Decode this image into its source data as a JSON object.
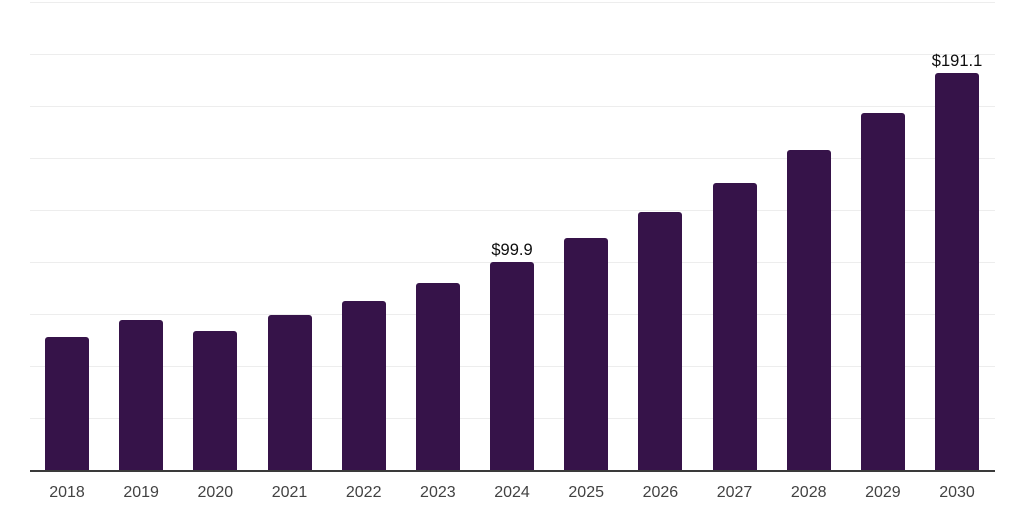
{
  "chart_data": {
    "type": "bar",
    "title": "",
    "xlabel": "",
    "ylabel": "",
    "categories": [
      "2018",
      "2019",
      "2020",
      "2021",
      "2022",
      "2023",
      "2024",
      "2025",
      "2026",
      "2027",
      "2028",
      "2029",
      "2030"
    ],
    "values": [
      63.9,
      72.3,
      66.7,
      74.4,
      81.1,
      89.9,
      99.9,
      111.3,
      124.0,
      138.2,
      154.0,
      171.5,
      191.1
    ],
    "value_labels": [
      "",
      "",
      "",
      "",
      "",
      "",
      "$99.9",
      "",
      "",
      "",
      "",
      "",
      "$191.1"
    ],
    "ylim": [
      0,
      225
    ],
    "gridline_step": 25,
    "grid": true,
    "legend": "none",
    "colors": {
      "bar": "#361349",
      "gridline": "#ededed",
      "axis_line": "#3a3a3a",
      "tick_label": "#424242",
      "value_label": "#0d0d0d",
      "background": "#ffffff"
    }
  }
}
